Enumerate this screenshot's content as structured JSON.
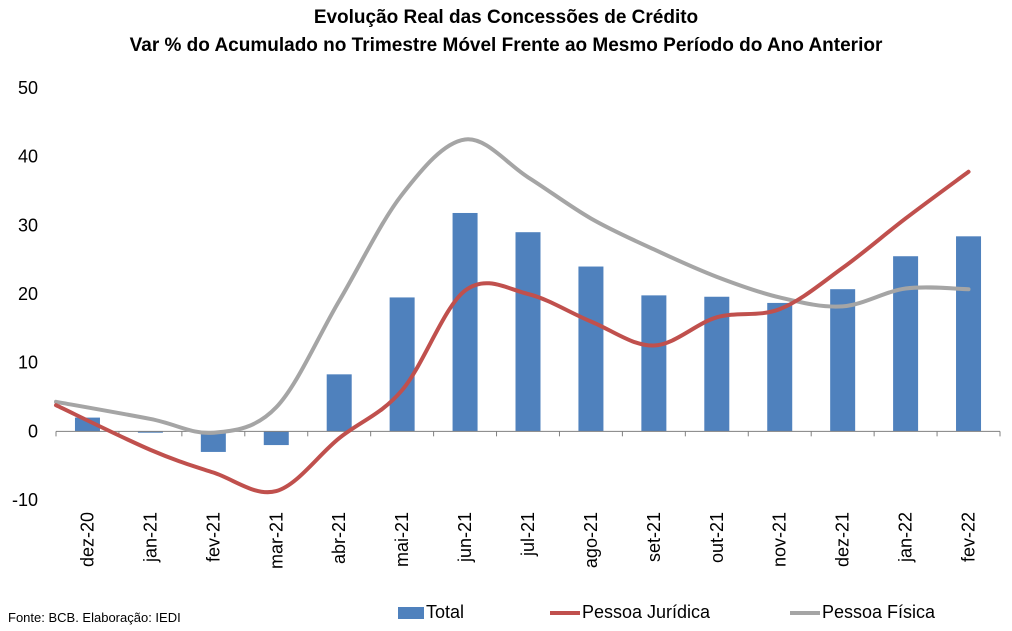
{
  "title": "Evolução Real das Concessões de Crédito",
  "subtitle": "Var % do Acumulado no Trimestre Móvel Frente ao Mesmo Período do Ano Anterior",
  "source": "Fonte: BCB. Elaboração: IEDI",
  "colors": {
    "total": "#4f81bd",
    "pj": "#c0504d",
    "pf": "#a5a5a5",
    "axis": "#808080"
  },
  "chart_data": {
    "type": "bar",
    "categories": [
      "dez-20",
      "jan-21",
      "fev-21",
      "mar-21",
      "abr-21",
      "mai-21",
      "jun-21",
      "jul-21",
      "ago-21",
      "set-21",
      "out-21",
      "nov-21",
      "dez-21",
      "jan-22",
      "fev-22"
    ],
    "ylim": [
      -10,
      50
    ],
    "yticks": [
      "-10",
      "0",
      "10",
      "20",
      "30",
      "40",
      "50"
    ],
    "series": [
      {
        "name": "Total",
        "type": "bar",
        "values": [
          2.0,
          -0.2,
          -3.0,
          -2.0,
          8.3,
          19.5,
          31.8,
          29.0,
          24.0,
          19.8,
          19.6,
          18.7,
          20.7,
          25.5,
          28.4
        ]
      },
      {
        "name": "Pessoa Jurídica",
        "type": "line",
        "values": [
          3.8,
          -2.7,
          -6.0,
          -8.7,
          -1.0,
          6.0,
          20.5,
          20.0,
          16.0,
          12.5,
          16.6,
          17.8,
          23.8,
          31.0,
          37.8
        ]
      },
      {
        "name": "Pessoa Física",
        "type": "line",
        "values": [
          4.3,
          1.8,
          -0.2,
          3.5,
          19.0,
          34.5,
          42.5,
          37.0,
          31.0,
          26.5,
          22.5,
          19.5,
          18.2,
          20.8,
          20.7
        ]
      }
    ]
  }
}
